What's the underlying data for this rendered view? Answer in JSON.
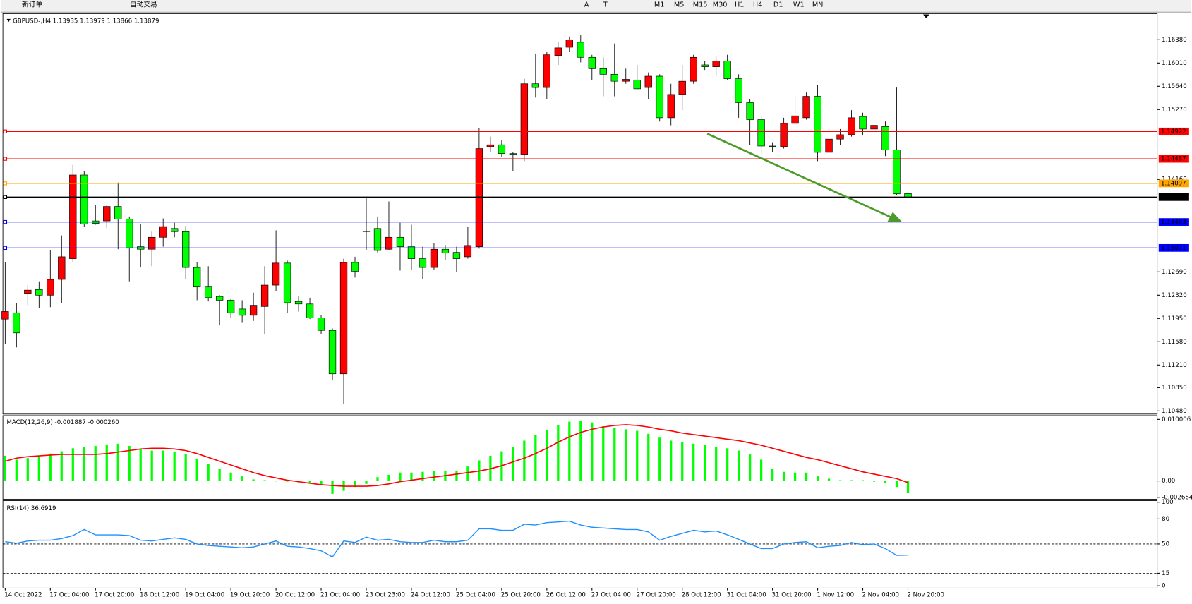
{
  "toolbar": {
    "buttons": [
      "新订单",
      "自动交易",
      "A",
      "T",
      "M1",
      "M5",
      "M15",
      "M30",
      "H1",
      "H4",
      "D1",
      "W1",
      "MN"
    ]
  },
  "chart_data": [
    {
      "type": "candlestick",
      "title": "GBPUSD-,H4  1.13935 1.13979 1.13866 1.13879",
      "categories": [
        "14 Oct 2022",
        null,
        null,
        null,
        "17 Oct 04:00",
        null,
        null,
        null,
        "17 Oct 20:00",
        null,
        null,
        null,
        "18 Oct 12:00",
        null,
        null,
        null,
        "19 Oct 04:00",
        null,
        null,
        null,
        "19 Oct 20:00",
        null,
        null,
        null,
        "20 Oct 12:00",
        null,
        null,
        null,
        "21 Oct 04:00",
        null,
        null,
        null,
        "23 Oct 23:00",
        null,
        null,
        null,
        "24 Oct 12:00",
        null,
        null,
        null,
        "25 Oct 04:00",
        null,
        null,
        null,
        "25 Oct 20:00",
        null,
        null,
        null,
        "26 Oct 12:00",
        null,
        null,
        null,
        "27 Oct 04:00",
        null,
        null,
        null,
        "27 Oct 20:00",
        null,
        null,
        null,
        "28 Oct 12:00",
        null,
        null,
        null,
        "31 Oct 04:00",
        null,
        null,
        null,
        "31 Oct 20:00",
        null,
        null,
        null,
        "1 Nov 12:00",
        null,
        null,
        null,
        "2 Nov 04:00",
        null,
        null,
        null,
        "2 Nov 20:00"
      ],
      "open": [
        1.1194,
        1.1204,
        1.1235,
        1.1241,
        1.1232,
        1.1257,
        1.129,
        1.1423,
        1.135,
        1.135,
        1.1373,
        1.1353,
        1.1309,
        1.1305,
        1.1324,
        1.1338,
        1.1333,
        1.1276,
        1.1245,
        1.123,
        1.1224,
        1.121,
        1.12,
        1.1214,
        1.1248,
        1.1283,
        1.1222,
        1.1218,
        1.1196,
        1.1176,
        1.1107,
        1.1284,
        1.1334,
        1.1338,
        1.1305,
        1.1324,
        1.1309,
        1.129,
        1.1276,
        1.1305,
        1.13,
        1.1293,
        1.1309,
        1.1468,
        1.1471,
        1.1457,
        1.1456,
        1.1568,
        1.1562,
        1.1613,
        1.1626,
        1.1634,
        1.161,
        1.1592,
        1.1583,
        1.1572,
        1.1574,
        1.1562,
        1.158,
        1.1514,
        1.1551,
        1.1572,
        1.1598,
        1.1595,
        1.1604,
        1.1576,
        1.1538,
        1.1511,
        1.1469,
        1.1468,
        1.1505,
        1.1514,
        1.1548,
        1.1459,
        1.148,
        1.1487,
        1.1516,
        1.1496,
        1.15,
        1.1463,
        1.13935
      ],
      "high": [
        1.1284,
        1.122,
        1.1248,
        1.1254,
        1.1303,
        1.1327,
        1.1439,
        1.1429,
        1.1375,
        1.1375,
        1.1411,
        1.1357,
        1.1345,
        1.1333,
        1.1354,
        1.1347,
        1.1342,
        1.1284,
        1.1278,
        1.1232,
        1.1226,
        1.1224,
        1.1236,
        1.1278,
        1.1335,
        1.1287,
        1.123,
        1.1228,
        1.12,
        1.1179,
        1.129,
        1.1293,
        1.1389,
        1.1357,
        1.1381,
        1.1347,
        1.1344,
        1.1309,
        1.1315,
        1.1312,
        1.1309,
        1.1341,
        1.1498,
        1.1484,
        1.1478,
        1.1459,
        1.1576,
        1.1616,
        1.1619,
        1.1634,
        1.1643,
        1.1645,
        1.1614,
        1.161,
        1.1632,
        1.1592,
        1.1598,
        1.1586,
        1.1583,
        1.1568,
        1.1598,
        1.1614,
        1.1604,
        1.1611,
        1.1614,
        1.1583,
        1.1544,
        1.1516,
        1.1475,
        1.1514,
        1.155,
        1.1554,
        1.1566,
        1.1498,
        1.1496,
        1.1526,
        1.1522,
        1.1526,
        1.1508,
        1.1562,
        1.13979
      ],
      "low": [
        1.1155,
        1.1149,
        1.1216,
        1.1212,
        1.1213,
        1.122,
        1.1284,
        1.1341,
        1.1344,
        1.1339,
        1.1305,
        1.1254,
        1.1276,
        1.1278,
        1.1309,
        1.1324,
        1.1258,
        1.1224,
        1.1222,
        1.1184,
        1.1196,
        1.1188,
        1.1191,
        1.117,
        1.1239,
        1.1204,
        1.1206,
        1.1194,
        1.117,
        1.1097,
        1.1059,
        1.126,
        1.1303,
        1.13,
        1.1303,
        1.1271,
        1.1272,
        1.1257,
        1.1272,
        1.1288,
        1.1269,
        1.129,
        1.1306,
        1.1459,
        1.1451,
        1.1429,
        1.1445,
        1.1546,
        1.1544,
        1.1598,
        1.1619,
        1.1602,
        1.1574,
        1.1548,
        1.1548,
        1.1568,
        1.1558,
        1.1544,
        1.1508,
        1.1502,
        1.1526,
        1.1568,
        1.159,
        1.158,
        1.1574,
        1.1514,
        1.1471,
        1.1456,
        1.1459,
        1.1465,
        1.1504,
        1.1511,
        1.1445,
        1.1438,
        1.1471,
        1.1484,
        1.1486,
        1.1484,
        1.1453,
        1.1391,
        1.13866
      ],
      "close": [
        1.1206,
        1.1172,
        1.124,
        1.1232,
        1.1257,
        1.1293,
        1.1423,
        1.1345,
        1.1346,
        1.1373,
        1.1353,
        1.1307,
        1.1305,
        1.1324,
        1.1341,
        1.1333,
        1.1276,
        1.1245,
        1.1228,
        1.1224,
        1.1204,
        1.12,
        1.1216,
        1.1248,
        1.1283,
        1.122,
        1.1218,
        1.1196,
        1.1176,
        1.1107,
        1.1284,
        1.127,
        1.1333,
        1.1303,
        1.1324,
        1.1309,
        1.129,
        1.1276,
        1.1305,
        1.1299,
        1.129,
        1.1311,
        1.1465,
        1.1471,
        1.1457,
        1.1456,
        1.1568,
        1.1562,
        1.1614,
        1.1625,
        1.1638,
        1.161,
        1.1592,
        1.1583,
        1.1572,
        1.1575,
        1.156,
        1.158,
        1.1514,
        1.1551,
        1.1572,
        1.161,
        1.1595,
        1.1604,
        1.1576,
        1.1538,
        1.1511,
        1.1469,
        1.1468,
        1.1505,
        1.1517,
        1.1548,
        1.1459,
        1.148,
        1.1487,
        1.1514,
        1.1496,
        1.1502,
        1.1463,
        1.1393,
        1.13879
      ],
      "up_color": "#ff0000",
      "down_color": "#00ff00",
      "levels": [
        {
          "value": 1.14922,
          "color": "#ff0000"
        },
        {
          "value": 1.14487,
          "color": "#ff0000"
        },
        {
          "value": 1.14097,
          "color": "#ffa500"
        },
        {
          "value": 1.13879,
          "color": "#000000"
        },
        {
          "value": 1.13483,
          "color": "#0000ff"
        },
        {
          "value": 1.13071,
          "color": "#0000ff"
        }
      ],
      "ylim": [
        1.1043,
        1.1677
      ],
      "yticks": [
        {
          "value": 1.1638,
          "label": "1.16380"
        },
        {
          "value": 1.1601,
          "label": "1.16010"
        },
        {
          "value": 1.1564,
          "label": "1.15640"
        },
        {
          "value": 1.1527,
          "label": "1.15270"
        },
        {
          "value": 1.1416,
          "label": "1.14160"
        },
        {
          "value": 1.1269,
          "label": "1.12690"
        },
        {
          "value": 1.1232,
          "label": "1.12320"
        },
        {
          "value": 1.1195,
          "label": "1.11950"
        },
        {
          "value": 1.1158,
          "label": "1.11580"
        },
        {
          "value": 1.1121,
          "label": "1.11210"
        },
        {
          "value": 1.1085,
          "label": "1.10850"
        },
        {
          "value": 1.1048,
          "label": "1.10480"
        }
      ]
    },
    {
      "type": "combo",
      "title": "MACD(12,26,9) -0.001887 -0.000260",
      "series": [
        {
          "style": "bar",
          "color": "#00ff00",
          "values": [
            0.00408,
            0.00346,
            0.00371,
            0.00408,
            0.00445,
            0.00482,
            0.00531,
            0.00556,
            0.00568,
            0.00593,
            0.00605,
            0.00568,
            0.00519,
            0.00494,
            0.00494,
            0.00469,
            0.00432,
            0.00358,
            0.00272,
            0.00198,
            0.00136,
            0.00074,
            0.00025,
            0.00012,
            0,
            -0.00012,
            -0.00025,
            -0.00037,
            -0.00062,
            -0.0021,
            -0.00161,
            -0.00099,
            -0.00049,
            0.00062,
            0.00099,
            0.00136,
            0.00136,
            0.00148,
            0.00161,
            0.00161,
            0.00161,
            0.00235,
            0.00334,
            0.00408,
            0.00482,
            0.00556,
            0.00655,
            0.00741,
            0.00828,
            0.00914,
            0.00964,
            0.00976,
            0.00951,
            0.00889,
            0.00865,
            0.0084,
            0.00815,
            0.00766,
            0.00704,
            0.00655,
            0.0063,
            0.00605,
            0.00581,
            0.00556,
            0.00531,
            0.00494,
            0.00432,
            0.00346,
            0.00198,
            0.00148,
            0.00136,
            0.00136,
            0.00074,
            0.00037,
            0.00012,
            0.00012,
            0.00012,
            -0.00012,
            -0.00037,
            -0.00099,
            -0.001887
          ]
        },
        {
          "style": "line",
          "color": "#ff0000",
          "values": [
            0.00321,
            0.00371,
            0.00395,
            0.00408,
            0.0042,
            0.00432,
            0.00432,
            0.00432,
            0.00432,
            0.00445,
            0.00469,
            0.00494,
            0.00519,
            0.00531,
            0.00531,
            0.00519,
            0.00494,
            0.00445,
            0.00383,
            0.00321,
            0.00259,
            0.00198,
            0.00136,
            0.00086,
            0.00049,
            0.00012,
            -0.00012,
            -0.00037,
            -0.00062,
            -0.00074,
            -0.00086,
            -0.00086,
            -0.00086,
            -0.00074,
            -0.00049,
            -0.00012,
            0.00012,
            0.00037,
            0.00062,
            0.00086,
            0.00111,
            0.00136,
            0.00161,
            0.00198,
            0.00247,
            0.00309,
            0.00371,
            0.00445,
            0.00531,
            0.0063,
            0.00716,
            0.0079,
            0.0084,
            0.00877,
            0.00902,
            0.00914,
            0.00902,
            0.00877,
            0.0084,
            0.00815,
            0.00778,
            0.00753,
            0.00729,
            0.00704,
            0.00679,
            0.00655,
            0.00618,
            0.0058,
            0.00531,
            0.00482,
            0.00432,
            0.00383,
            0.00346,
            0.00296,
            0.00247,
            0.00198,
            0.00148,
            0.00111,
            0.00074,
            0.00037,
            -0.00026
          ]
        }
      ],
      "ylim": [
        -0.00284,
        0.0105
      ],
      "yticks": [
        0.010006,
        {
          "value": 0,
          "label": "0.00"
        },
        -0.002664
      ]
    },
    {
      "type": "line",
      "title": "RSI(14) 36.6919",
      "series": [
        {
          "color": "#1e90ff",
          "values": [
            52.7,
            50.9,
            53.6,
            54.5,
            54.5,
            56.4,
            60.0,
            67.3,
            60.9,
            60.9,
            60.9,
            60.0,
            54.5,
            53.6,
            55.5,
            57.3,
            55.5,
            50.0,
            48.2,
            47.3,
            46.4,
            45.5,
            46.4,
            50.0,
            53.6,
            47.3,
            46.4,
            44.5,
            41.8,
            34.5,
            53.6,
            51.8,
            58.2,
            54.5,
            55.5,
            52.7,
            51.8,
            51.8,
            54.5,
            52.7,
            52.7,
            54.5,
            68.2,
            68.2,
            66.4,
            66.4,
            73.6,
            72.7,
            75.5,
            76.4,
            77.3,
            72.7,
            70.0,
            69.1,
            68.2,
            67.3,
            67.3,
            64.5,
            54.5,
            59.1,
            62.7,
            66.4,
            64.5,
            65.5,
            60.9,
            55.5,
            50.0,
            44.5,
            44.5,
            50.0,
            51.8,
            52.7,
            45.5,
            47.3,
            48.2,
            51.8,
            49.1,
            50.0,
            44.5,
            36.4,
            36.6919
          ]
        }
      ],
      "levels": [
        80,
        50,
        15
      ],
      "ylim": [
        0,
        100
      ],
      "yticks": [
        100,
        80,
        50,
        15,
        0
      ]
    }
  ]
}
